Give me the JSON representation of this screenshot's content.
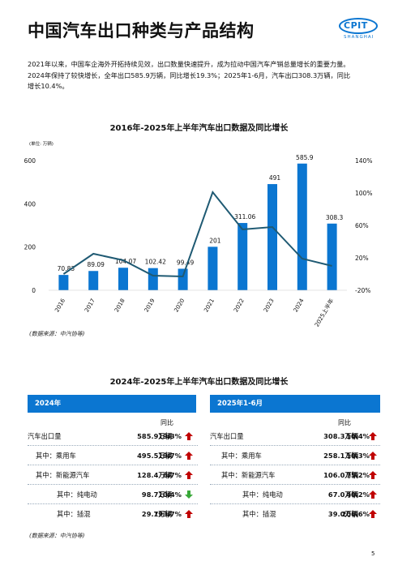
{
  "page": {
    "title": "中国汽车出口种类与产品结构",
    "logo_text": "CPIT",
    "logo_sub": "SHANGHAI",
    "intro_line1": "2021年以来，中国车企海外开拓持续见效，出口数量快速提升，成为拉动中国汽车产销总量增长的重要力量。",
    "intro_line2": "2024年保持了较快增长，全年出口585.9万辆，同比增长19.3%；2025年1-6月，汽车出口308.3万辆，同比",
    "intro_line3": "增长10.4%。",
    "page_number": "5",
    "colors": {
      "accent": "#0b76d1",
      "line": "#1f5a73",
      "up": "#c00000",
      "down": "#38a838"
    }
  },
  "chart_data": {
    "type": "bar",
    "title": "2016年-2025年上半年汽车出口数据及同比增长",
    "unit_label": "(单位: 万辆)",
    "categories": [
      "2016",
      "2017",
      "2018",
      "2019",
      "2020",
      "2021",
      "2022",
      "2023",
      "2024",
      "2025上半年"
    ],
    "series": [
      {
        "type": "bar",
        "values": [
          70.83,
          89.09,
          104.07,
          102.42,
          99.49,
          201,
          311.06,
          491,
          585.9,
          308.3
        ],
        "labels": [
          "70.83",
          "89.09",
          "104.07",
          "102.42",
          "99.49",
          "201",
          "311.06",
          "491",
          "585.9",
          "308.3"
        ]
      },
      {
        "type": "line",
        "axis": "right",
        "values": [
          0,
          25,
          17,
          -2,
          -3,
          101,
          55,
          58,
          19,
          10
        ]
      }
    ],
    "ylim": [
      0,
      600
    ],
    "y_ticks": [
      "0",
      "200",
      "400",
      "600"
    ],
    "y2lim": [
      -20,
      140
    ],
    "y2_ticks": [
      "-20%",
      "20%",
      "60%",
      "100%",
      "140%"
    ],
    "source": "(数据来源：中汽协等)"
  },
  "tables": {
    "title": "2024年-2025年上半年汽车出口数据及同比增长",
    "yoy_label": "同比",
    "source": "(数据来源：中汽协等)",
    "left": {
      "header": "2024年",
      "rows": [
        {
          "label": "汽车出口量",
          "value": "585.9万辆",
          "pct": "19.3%",
          "dir": "up"
        },
        {
          "label": "其中：乘用车",
          "value": "495.5万辆",
          "pct": "19.7%",
          "dir": "up"
        },
        {
          "label": "其中：新能源汽车",
          "value": "128.4万辆",
          "pct": "6.7%",
          "dir": "up"
        },
        {
          "label": "其中：纯电动",
          "value": "98.7万辆",
          "pct": "10.4%",
          "dir": "down"
        },
        {
          "label": "其中：插混",
          "value": "29.7万辆",
          "pct": "193.7%",
          "dir": "up"
        }
      ]
    },
    "right": {
      "header": "2025年1-6月",
      "rows": [
        {
          "label": "汽车出口量",
          "value": "308.3万辆",
          "pct": "10.4%",
          "dir": "up"
        },
        {
          "label": "其中：乘用车",
          "value": "258.1万辆",
          "pct": "10.3%",
          "dir": "up"
        },
        {
          "label": "其中：新能源汽车",
          "value": "106.0万辆",
          "pct": "75.2%",
          "dir": "up"
        },
        {
          "label": "其中：纯电动",
          "value": "67.0万辆",
          "pct": "40.2%",
          "dir": "up"
        },
        {
          "label": "其中：插混",
          "value": "39.0万辆",
          "pct": "206.6%",
          "dir": "up"
        }
      ]
    }
  }
}
